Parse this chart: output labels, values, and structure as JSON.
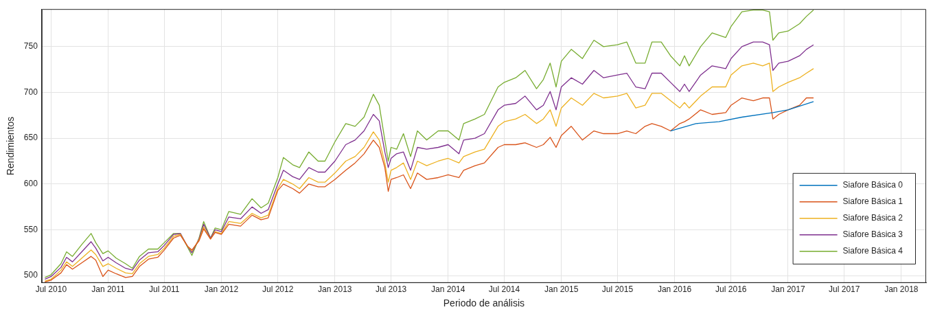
{
  "chart_data": {
    "type": "line",
    "xlabel": "Periodo de análisis",
    "ylabel": "Rendimientos",
    "x": [
      "2010-06-11",
      "2010-07-01",
      "2010-08-02",
      "2010-08-20",
      "2010-09-08",
      "2010-10-08",
      "2010-11-07",
      "2010-11-22",
      "2010-12-15",
      "2011-01-01",
      "2011-01-27",
      "2011-02-26",
      "2011-03-20",
      "2011-04-12",
      "2011-05-11",
      "2011-06-10",
      "2011-07-01",
      "2011-07-31",
      "2011-08-22",
      "2011-09-14",
      "2011-09-28",
      "2011-10-21",
      "2011-11-05",
      "2011-11-27",
      "2011-12-12",
      "2012-01-01",
      "2012-01-25",
      "2012-03-03",
      "2012-04-09",
      "2012-05-08",
      "2012-05-31",
      "2012-07-01",
      "2012-07-19",
      "2012-08-18",
      "2012-09-09",
      "2012-10-09",
      "2012-11-08",
      "2012-11-30",
      "2013-01-01",
      "2013-02-05",
      "2013-03-07",
      "2013-04-05",
      "2013-05-05",
      "2013-05-24",
      "2013-06-11",
      "2013-06-22",
      "2013-07-01",
      "2013-07-19",
      "2013-08-10",
      "2013-09-02",
      "2013-09-24",
      "2013-10-24",
      "2013-11-30",
      "2014-01-01",
      "2014-02-05",
      "2014-02-20",
      "2014-03-29",
      "2014-04-28",
      "2014-06-11",
      "2014-07-01",
      "2014-08-07",
      "2014-09-06",
      "2014-10-13",
      "2014-11-04",
      "2014-11-26",
      "2014-12-15",
      "2015-01-01",
      "2015-02-02",
      "2015-03-10",
      "2015-04-16",
      "2015-05-17",
      "2015-07-01",
      "2015-07-31",
      "2015-08-29",
      "2015-09-28",
      "2015-10-20",
      "2015-11-19",
      "2015-12-19",
      "2016-01-18",
      "2016-02-02",
      "2016-02-17",
      "2016-03-25",
      "2016-05-01",
      "2016-06-14",
      "2016-07-01",
      "2016-08-05",
      "2016-09-11",
      "2016-10-11",
      "2016-11-02",
      "2016-11-13",
      "2016-12-02",
      "2017-01-01",
      "2017-02-07",
      "2017-03-01",
      "2017-03-24"
    ],
    "series": [
      {
        "name": "Siafore Básica 0",
        "color": "#0072bd",
        "x": [
          "2015-12-19",
          "2016-01-18",
          "2016-03-10",
          "2016-05-23",
          "2016-08-05",
          "2016-11-13",
          "2017-01-01",
          "2017-03-24"
        ],
        "values": [
          658,
          661,
          666,
          668,
          673,
          678,
          681,
          690
        ]
      },
      {
        "name": "Siafore Básica 1",
        "color": "#d95319",
        "values": [
          493,
          495,
          503,
          512,
          507,
          514,
          521,
          517,
          499,
          506,
          502,
          498,
          499,
          510,
          518,
          520,
          528,
          541,
          544,
          532,
          528,
          538,
          551,
          540,
          547,
          545,
          556,
          554,
          566,
          561,
          563,
          593,
          600,
          595,
          590,
          600,
          597,
          597,
          605,
          615,
          623,
          633,
          648,
          640,
          618,
          592,
          605,
          607,
          610,
          595,
          612,
          605,
          607,
          610,
          607,
          615,
          620,
          623,
          640,
          643,
          643,
          645,
          640,
          643,
          651,
          640,
          653,
          663,
          648,
          658,
          655,
          655,
          658,
          655,
          663,
          666,
          663,
          658,
          666,
          668,
          671,
          681,
          676,
          678,
          686,
          694,
          691,
          694,
          694,
          671,
          676,
          681,
          686,
          694,
          694
        ]
      },
      {
        "name": "Siafore Básica 2",
        "color": "#edb120",
        "values": [
          494,
          496,
          506,
          515,
          510,
          519,
          528,
          523,
          510,
          513,
          508,
          503,
          502,
          513,
          521,
          523,
          530,
          543,
          545,
          532,
          527,
          539,
          553,
          540,
          548,
          546,
          559,
          557,
          568,
          563,
          566,
          595,
          605,
          600,
          595,
          607,
          602,
          602,
          612,
          625,
          630,
          640,
          657,
          648,
          623,
          602,
          615,
          618,
          623,
          605,
          625,
          620,
          625,
          628,
          623,
          630,
          635,
          638,
          663,
          668,
          671,
          676,
          666,
          671,
          681,
          663,
          683,
          694,
          686,
          699,
          694,
          696,
          699,
          683,
          686,
          699,
          699,
          691,
          683,
          689,
          683,
          696,
          706,
          706,
          719,
          729,
          732,
          729,
          732,
          701,
          706,
          711,
          716,
          721,
          726
        ]
      },
      {
        "name": "Siafore Básica 3",
        "color": "#7e2f8e",
        "values": [
          496,
          499,
          509,
          520,
          515,
          526,
          537,
          530,
          516,
          520,
          514,
          508,
          506,
          517,
          525,
          526,
          533,
          545,
          546,
          532,
          525,
          540,
          556,
          541,
          550,
          548,
          564,
          562,
          575,
          568,
          572,
          600,
          615,
          608,
          605,
          618,
          613,
          613,
          625,
          643,
          648,
          658,
          676,
          669,
          635,
          618,
          628,
          633,
          635,
          615,
          640,
          638,
          640,
          643,
          633,
          648,
          650,
          655,
          681,
          686,
          688,
          696,
          681,
          686,
          701,
          681,
          706,
          716,
          709,
          724,
          716,
          719,
          721,
          706,
          704,
          721,
          721,
          711,
          701,
          709,
          701,
          719,
          729,
          726,
          737,
          750,
          755,
          755,
          752,
          724,
          732,
          734,
          740,
          747,
          752
        ]
      },
      {
        "name": "Siafore Básica 4",
        "color": "#77ac30",
        "values": [
          498,
          501,
          513,
          526,
          521,
          534,
          546,
          536,
          524,
          527,
          519,
          513,
          508,
          521,
          529,
          529,
          536,
          546,
          546,
          531,
          522,
          541,
          559,
          541,
          552,
          550,
          570,
          567,
          584,
          574,
          579,
          607,
          629,
          621,
          618,
          635,
          625,
          625,
          646,
          666,
          663,
          673,
          698,
          686,
          648,
          625,
          640,
          638,
          655,
          630,
          658,
          648,
          658,
          658,
          648,
          666,
          671,
          676,
          706,
          711,
          716,
          724,
          704,
          714,
          732,
          706,
          734,
          747,
          737,
          757,
          750,
          752,
          755,
          732,
          732,
          755,
          755,
          740,
          729,
          740,
          729,
          750,
          765,
          760,
          772,
          788,
          790,
          790,
          788,
          757,
          765,
          767,
          775,
          783,
          790
        ]
      }
    ],
    "xlim": [
      "2010-06-01",
      "2018-03-22"
    ],
    "xticks": [
      {
        "value": "2010-07",
        "label": "Jul 2010"
      },
      {
        "value": "2011-01",
        "label": "Jan 2011"
      },
      {
        "value": "2011-07",
        "label": "Jul 2011"
      },
      {
        "value": "2012-01",
        "label": "Jan 2012"
      },
      {
        "value": "2012-07",
        "label": "Jul 2012"
      },
      {
        "value": "2013-01",
        "label": "Jan 2013"
      },
      {
        "value": "2013-07",
        "label": "Jul 2013"
      },
      {
        "value": "2014-01",
        "label": "Jan 2014"
      },
      {
        "value": "2014-07",
        "label": "Jul 2014"
      },
      {
        "value": "2015-01",
        "label": "Jan 2015"
      },
      {
        "value": "2015-07",
        "label": "Jul 2015"
      },
      {
        "value": "2016-01",
        "label": "Jan 2016"
      },
      {
        "value": "2016-07",
        "label": "Jul 2016"
      },
      {
        "value": "2017-01",
        "label": "Jan 2017"
      },
      {
        "value": "2017-07",
        "label": "Jul 2017"
      },
      {
        "value": "2018-01",
        "label": "Jan 2018"
      }
    ],
    "ylim": [
      492,
      791
    ],
    "yticks": [
      500,
      550,
      600,
      650,
      700,
      750
    ],
    "grid": true,
    "legend": "bottom right",
    "marker": "none",
    "line_style": "solid"
  }
}
